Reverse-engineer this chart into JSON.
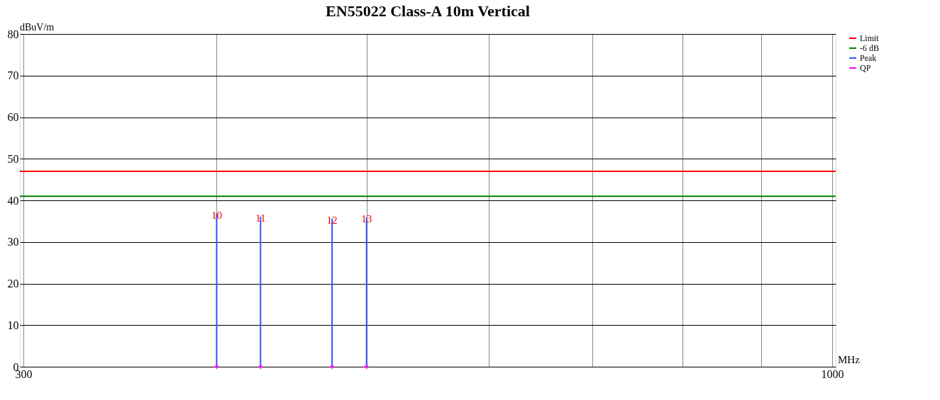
{
  "chart_data": {
    "type": "bar",
    "title": "EN55022 Class-A 10m  Vertical",
    "xlabel": "MHz",
    "ylabel": "dBuV/m",
    "x": [
      400,
      427,
      475,
      500
    ],
    "series": [
      {
        "name": "Peak",
        "color": "#3355ff",
        "values": [
          36.8,
          36.1,
          35.6,
          35.9
        ]
      },
      {
        "name": "QP",
        "type": "scatter",
        "marker": "cross",
        "color": "#ff00ff",
        "values": [
          0,
          0,
          0,
          0
        ]
      }
    ],
    "annotations": [
      {
        "text": "10",
        "x": 400,
        "y": 36.8
      },
      {
        "text": "11",
        "x": 427,
        "y": 36.1
      },
      {
        "text": "12",
        "x": 475,
        "y": 35.6
      },
      {
        "text": "13",
        "x": 500,
        "y": 35.9
      }
    ],
    "ref_lines": [
      {
        "axis": "y",
        "value": 47,
        "label": "Limit",
        "color": "#ff0000"
      },
      {
        "axis": "y",
        "value": 41,
        "label": "-6 dB",
        "color": "#008000"
      }
    ],
    "log": "x",
    "xlim": [
      300,
      1000
    ],
    "ylim": [
      0,
      80
    ],
    "xticks": [
      300,
      {
        "value": 400,
        "label": null
      },
      {
        "value": 500,
        "label": null
      },
      {
        "value": 600,
        "label": null
      },
      {
        "value": 700,
        "label": null
      },
      {
        "value": 800,
        "label": null
      },
      {
        "value": 900,
        "label": null
      },
      1000
    ],
    "yticks": [
      0,
      10,
      20,
      30,
      40,
      50,
      60,
      70,
      80
    ],
    "grid": true,
    "legend": "right"
  }
}
